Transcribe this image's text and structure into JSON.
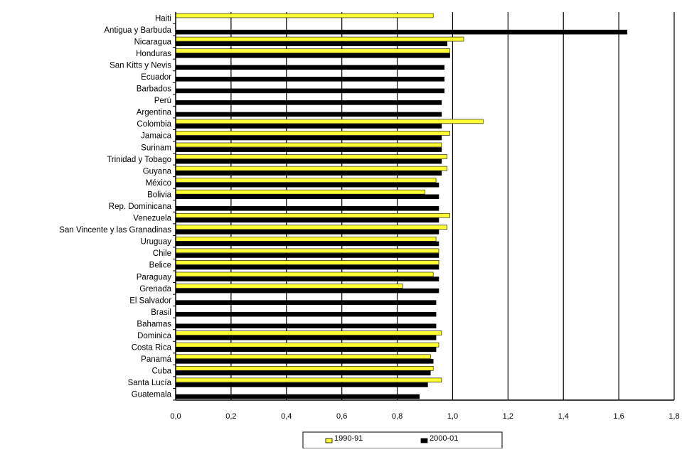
{
  "chart_data": {
    "type": "bar",
    "orientation": "horizontal",
    "categories": [
      "Haiti",
      "Antigua y Barbuda",
      "Nicaragua",
      "Honduras",
      "San Kitts y Nevis",
      "Ecuador",
      "Barbados",
      "Perú",
      "Argentina",
      "Colombia",
      "Jamaica",
      "Surinam",
      "Trinidad y Tobago",
      "Guyana",
      "México",
      "Bolivia",
      "Rep. Dominicana",
      "Venezuela",
      "San Vincente y las Granadinas",
      "Uruguay",
      "Chile",
      "Belice",
      "Paraguay",
      "Grenada",
      "El Salvador",
      "Brasil",
      "Bahamas",
      "Dominica",
      "Costa Rica",
      "Panamá",
      "Cuba",
      "Santa Lucía",
      "Guatemala"
    ],
    "series": [
      {
        "name": "1990-91",
        "color": "#ffff33",
        "values": [
          0.93,
          null,
          1.04,
          0.99,
          null,
          null,
          null,
          null,
          null,
          1.11,
          0.99,
          0.96,
          0.98,
          0.98,
          0.94,
          0.9,
          null,
          0.99,
          0.98,
          0.94,
          0.95,
          0.95,
          0.93,
          0.82,
          null,
          null,
          null,
          0.96,
          0.95,
          0.92,
          0.93,
          0.96,
          null
        ]
      },
      {
        "name": "2000-01",
        "color": "#000000",
        "values": [
          null,
          1.63,
          0.98,
          0.99,
          0.97,
          0.97,
          0.97,
          0.96,
          0.96,
          0.96,
          0.96,
          0.96,
          0.96,
          0.96,
          0.95,
          0.95,
          0.95,
          0.95,
          0.95,
          0.95,
          0.95,
          0.95,
          0.95,
          0.95,
          0.94,
          0.94,
          0.94,
          0.94,
          0.94,
          0.93,
          0.92,
          0.91,
          0.88
        ]
      }
    ],
    "xticks": [
      "0,0",
      "0,2",
      "0,4",
      "0,6",
      "0,8",
      "1,0",
      "1,2",
      "1,4",
      "1,6",
      "1,8"
    ],
    "xlim": [
      0,
      1.8
    ],
    "grid": "vertical",
    "legend": "bottom"
  }
}
